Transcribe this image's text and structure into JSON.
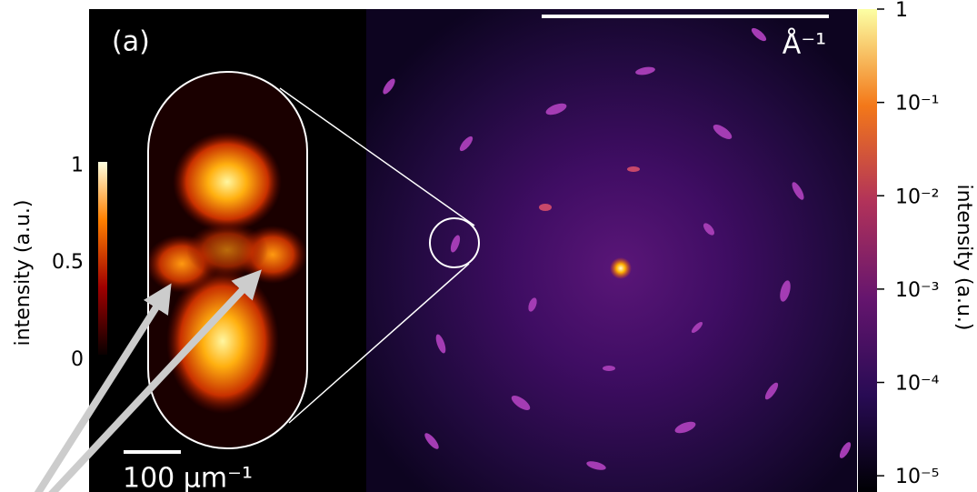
{
  "panel_label": "(a)",
  "reciprocal_scale_bar": {
    "label": "Å⁻¹"
  },
  "inset_scale_bar": {
    "label": "100 µm⁻¹"
  },
  "inset_colorbar": {
    "label": "intensity (a.u.)",
    "lim": [
      0,
      1.02
    ],
    "ticks": [
      1,
      0.5,
      0
    ]
  },
  "main_colorbar": {
    "label": "intensity (a.u.)",
    "log": true,
    "lim": [
      6.7e-06,
      1
    ],
    "ticks": [
      {
        "value": 1,
        "label": "1"
      },
      {
        "value": 0.1,
        "label": "10⁻¹"
      },
      {
        "value": 0.01,
        "label": "10⁻²"
      },
      {
        "value": 0.001,
        "label": "10⁻³"
      },
      {
        "value": 0.0001,
        "label": "10⁻⁴"
      },
      {
        "value": 1e-05,
        "label": "10⁻⁵"
      }
    ]
  }
}
